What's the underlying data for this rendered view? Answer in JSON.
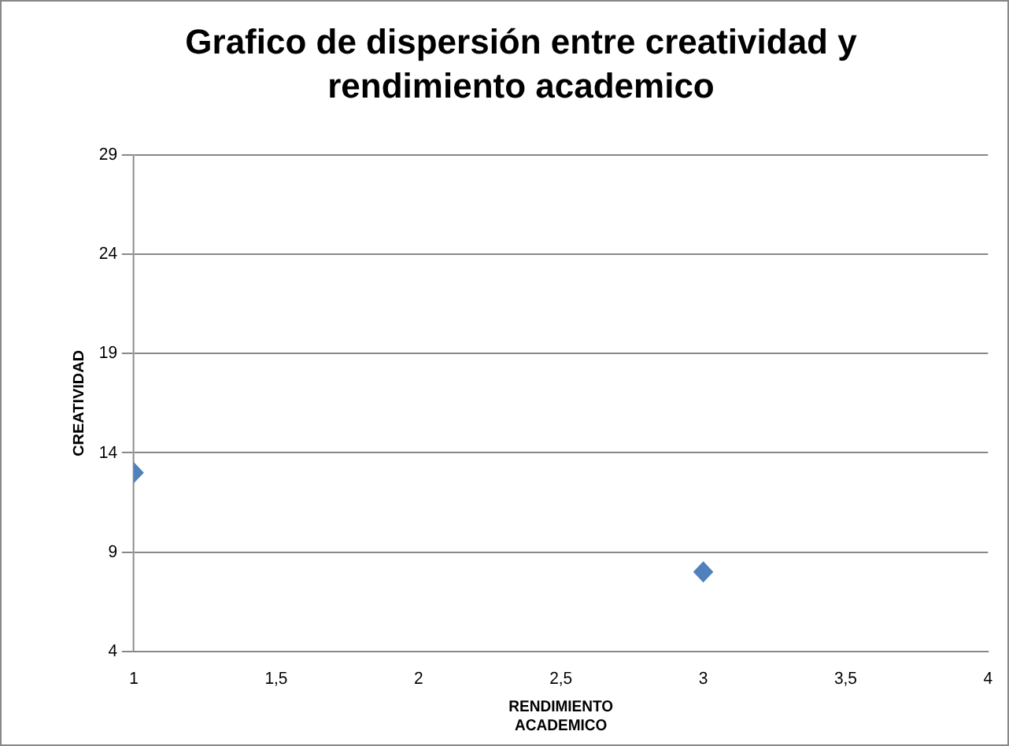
{
  "chart_data": {
    "type": "scatter",
    "title": "Grafico de dispersión  entre creatividad y rendimiento academico",
    "xlabel": "RENDIMIENTO ACADEMICO",
    "ylabel": "CREATIVIDAD",
    "x": [
      1,
      3
    ],
    "series": [
      {
        "color": "#4f81bd",
        "values": [
          13,
          8
        ]
      }
    ],
    "xlim": [
      1,
      4
    ],
    "xticks": [
      1,
      {
        "value": 1.5,
        "label": "1,5"
      },
      2,
      {
        "value": 2.5,
        "label": "2,5"
      },
      3,
      {
        "value": 3.5,
        "label": "3,5"
      },
      4
    ],
    "ylim": [
      4,
      29
    ],
    "yticks": [
      4,
      9,
      14,
      19,
      24,
      29
    ],
    "grid": "y",
    "marker": "diamond",
    "legend": false
  }
}
